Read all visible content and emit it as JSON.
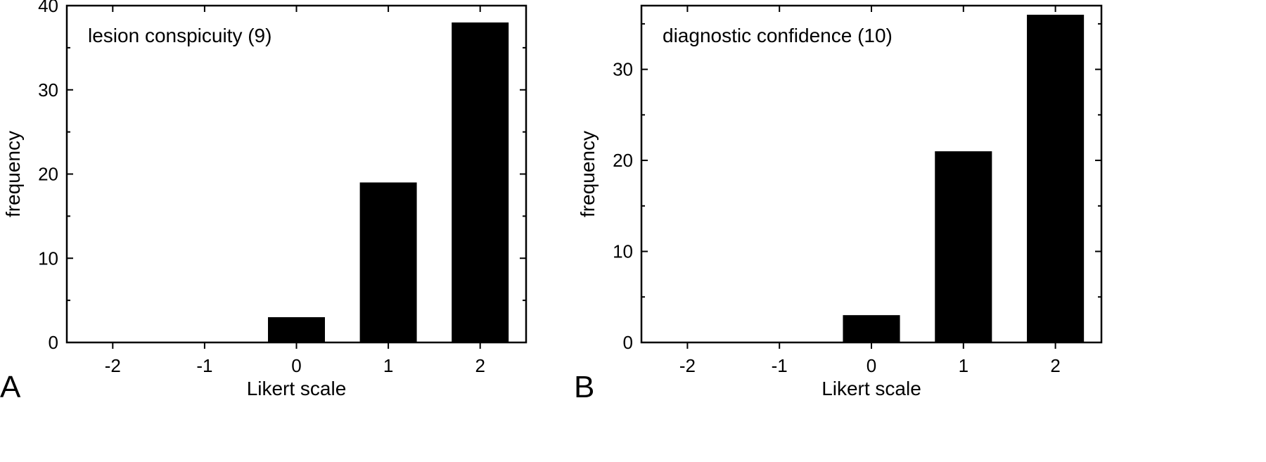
{
  "chart_data": [
    {
      "type": "bar",
      "panel_label": "A",
      "title": "lesion conspicuity (9)",
      "xlabel": "Likert scale",
      "ylabel": "frequency",
      "categories": [
        "-2",
        "-1",
        "0",
        "1",
        "2"
      ],
      "values": [
        0,
        0,
        3,
        19,
        38
      ],
      "ylim": [
        0,
        40
      ],
      "yticks": [
        0,
        10,
        20,
        30,
        40
      ],
      "grid": false,
      "bar_color": "#000000"
    },
    {
      "type": "bar",
      "panel_label": "B",
      "title": "diagnostic confidence (10)",
      "xlabel": "Likert scale",
      "ylabel": "frequency",
      "categories": [
        "-2",
        "-1",
        "0",
        "1",
        "2"
      ],
      "values": [
        0,
        0,
        3,
        21,
        36
      ],
      "ylim": [
        0,
        37
      ],
      "yticks": [
        0,
        10,
        20,
        30
      ],
      "grid": false,
      "bar_color": "#000000"
    }
  ]
}
